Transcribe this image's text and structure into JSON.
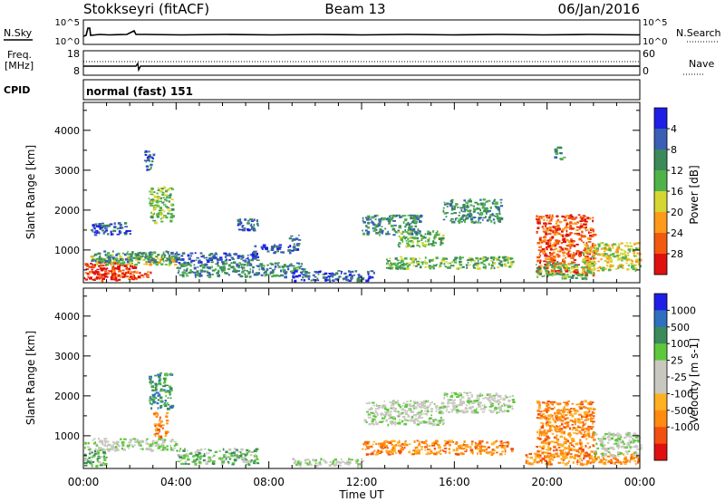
{
  "header": {
    "site": "Stokkseyri (fitACF)",
    "beam": "Beam 13",
    "date": "06/Jan/2016"
  },
  "summary_panels": {
    "nsky": {
      "left_label": "N.Sky",
      "left_ticks": [
        "10^5",
        "10^0"
      ],
      "right_ticks": [
        "10^5",
        "10^0"
      ],
      "right_label": "N.Search"
    },
    "freq": {
      "left_label_lines": [
        "Freq.",
        "[MHz]"
      ],
      "left_ticks": [
        "18",
        "8"
      ],
      "right_ticks": [
        "60",
        "0"
      ],
      "right_label": "Nave"
    },
    "cpid": {
      "label": "CPID",
      "value": "normal (fast) 151"
    }
  },
  "colors": {
    "power": [
      "#1e1ee6",
      "#3a5fb5",
      "#3c8a5a",
      "#4fb34a",
      "#d6d633",
      "#ff9a1a",
      "#f25a10",
      "#e01010"
    ],
    "velocity": [
      "#1e1ee6",
      "#2f6fc0",
      "#3c8a5a",
      "#5ec83c",
      "#c8c8c0",
      "#c8c8c0",
      "#ffb020",
      "#ff8a10",
      "#f25010",
      "#e01010"
    ]
  },
  "chart_data": [
    {
      "type": "heatmap",
      "panel": "power",
      "ylabel": "Slant Range [km]",
      "ylim": [
        180,
        4700
      ],
      "y_ticks": [
        1000,
        2000,
        3000,
        4000
      ],
      "y_tick_labels": [
        "1000",
        "2000",
        "3000",
        "4000"
      ],
      "x_unit": "hours UT",
      "xlim": [
        0,
        24
      ],
      "colorbar": {
        "label": "Power [dB]",
        "levels": [
          0,
          4,
          8,
          12,
          16,
          20,
          24,
          28,
          32
        ],
        "tick_labels": [
          "4",
          "8",
          "12",
          "16",
          "20",
          "24",
          "28"
        ]
      },
      "regions": [
        {
          "t": [
            0.0,
            2.2
          ],
          "r": [
            250,
            700
          ],
          "v": 29
        },
        {
          "t": [
            0.2,
            3.0
          ],
          "r": [
            300,
            500
          ],
          "v": 28
        },
        {
          "t": [
            0.3,
            4.0
          ],
          "r": [
            650,
            900
          ],
          "v": 20
        },
        {
          "t": [
            0.3,
            4.0
          ],
          "r": [
            700,
            1000
          ],
          "v": 12
        },
        {
          "t": [
            0.3,
            2.0
          ],
          "r": [
            1400,
            1700
          ],
          "v": 6
        },
        {
          "t": [
            2.8,
            3.8
          ],
          "r": [
            1700,
            2600
          ],
          "v": 14
        },
        {
          "t": [
            2.6,
            3.0
          ],
          "r": [
            3000,
            3500
          ],
          "v": 6
        },
        {
          "t": [
            4.0,
            9.5
          ],
          "r": [
            350,
            700
          ],
          "v": 12
        },
        {
          "t": [
            4.0,
            7.5
          ],
          "r": [
            700,
            950
          ],
          "v": 6
        },
        {
          "t": [
            6.5,
            7.5
          ],
          "r": [
            1500,
            1800
          ],
          "v": 6
        },
        {
          "t": [
            7.3,
            8.6
          ],
          "r": [
            950,
            1150
          ],
          "v": 8
        },
        {
          "t": [
            8.8,
            9.3
          ],
          "r": [
            950,
            1400
          ],
          "v": 6
        },
        {
          "t": [
            9.0,
            12.5
          ],
          "r": [
            250,
            500
          ],
          "v": 7
        },
        {
          "t": [
            12.0,
            14.5
          ],
          "r": [
            1400,
            1900
          ],
          "v": 10
        },
        {
          "t": [
            13.5,
            15.5
          ],
          "r": [
            1100,
            1500
          ],
          "v": 14
        },
        {
          "t": [
            15.5,
            18.0
          ],
          "r": [
            1700,
            2300
          ],
          "v": 10
        },
        {
          "t": [
            13.0,
            18.5
          ],
          "r": [
            550,
            850
          ],
          "v": 13
        },
        {
          "t": [
            19.5,
            22.0
          ],
          "r": [
            400,
            1900
          ],
          "v": 25
        },
        {
          "t": [
            19.5,
            22.0
          ],
          "r": [
            300,
            700
          ],
          "v": 15
        },
        {
          "t": [
            21.5,
            24.0
          ],
          "r": [
            500,
            1200
          ],
          "v": 17
        },
        {
          "t": [
            20.3,
            20.7
          ],
          "r": [
            3300,
            3600
          ],
          "v": 10
        }
      ]
    },
    {
      "type": "heatmap",
      "panel": "velocity",
      "ylabel": "Slant Range [km]",
      "ylim": [
        180,
        4700
      ],
      "y_ticks": [
        1000,
        2000,
        3000,
        4000
      ],
      "y_tick_labels": [
        "1000",
        "2000",
        "3000",
        "4000"
      ],
      "x_unit": "hours UT",
      "xlim": [
        0,
        24
      ],
      "x_ticks": [
        0,
        4,
        8,
        12,
        16,
        20,
        24
      ],
      "x_tick_labels": [
        "00:00",
        "04:00",
        "08:00",
        "12:00",
        "16:00",
        "20:00",
        "00:00"
      ],
      "xlabel": "Time UT",
      "colorbar": {
        "label": "Velocity [m s-1]",
        "levels": [
          1500,
          1000,
          500,
          100,
          25,
          0,
          -25,
          -100,
          -500,
          -1000,
          -1500
        ],
        "tick_labels": [
          "1000",
          "500",
          "100",
          "25",
          "-25",
          "-100",
          "-500",
          "-1000"
        ]
      },
      "regions": [
        {
          "t": [
            0.0,
            1.0
          ],
          "r": [
            250,
            700
          ],
          "v": 80
        },
        {
          "t": [
            0.0,
            4.0
          ],
          "r": [
            650,
            950
          ],
          "v": 0
        },
        {
          "t": [
            2.8,
            3.8
          ],
          "r": [
            1700,
            2600
          ],
          "v": 120
        },
        {
          "t": [
            3.0,
            3.6
          ],
          "r": [
            1000,
            1600
          ],
          "v": -150
        },
        {
          "t": [
            4.0,
            7.5
          ],
          "r": [
            300,
            700
          ],
          "v": 60
        },
        {
          "t": [
            9.0,
            12.0
          ],
          "r": [
            250,
            450
          ],
          "v": 10
        },
        {
          "t": [
            12.0,
            15.5
          ],
          "r": [
            1300,
            1900
          ],
          "v": 0
        },
        {
          "t": [
            15.5,
            18.5
          ],
          "r": [
            1600,
            2100
          ],
          "v": 0
        },
        {
          "t": [
            12.0,
            18.5
          ],
          "r": [
            550,
            900
          ],
          "v": -150
        },
        {
          "t": [
            19.5,
            22.0
          ],
          "r": [
            500,
            1900
          ],
          "v": -300
        },
        {
          "t": [
            19.0,
            24.0
          ],
          "r": [
            300,
            600
          ],
          "v": -120
        },
        {
          "t": [
            22.0,
            24.0
          ],
          "r": [
            500,
            1100
          ],
          "v": 0
        }
      ]
    }
  ]
}
